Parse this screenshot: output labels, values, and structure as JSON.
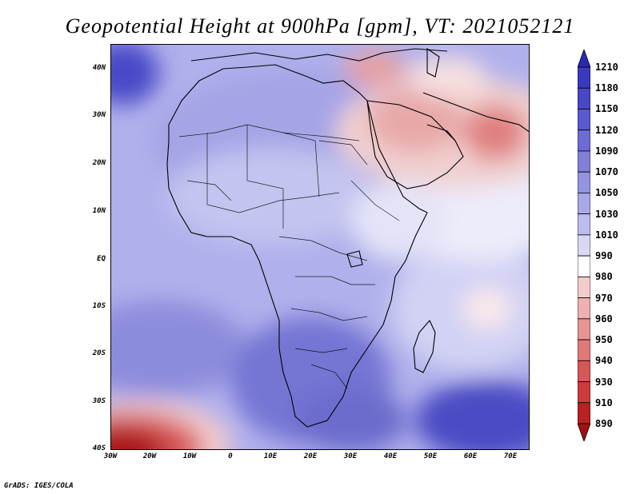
{
  "title": "Geopotential Height at 900hPa [gpm], VT: 2021052121",
  "credit": "GrADS: IGES/COLA",
  "y_axis": [
    "40N",
    "30N",
    "20N",
    "10N",
    "EQ",
    "10S",
    "20S",
    "30S",
    "40S"
  ],
  "x_axis": [
    "30W",
    "20W",
    "10W",
    "0",
    "10E",
    "20E",
    "30E",
    "40E",
    "50E",
    "60E",
    "70E"
  ],
  "colorbar": {
    "labels": [
      "1210",
      "1180",
      "1150",
      "1120",
      "1090",
      "1070",
      "1050",
      "1030",
      "1010",
      "990",
      "980",
      "970",
      "960",
      "950",
      "940",
      "930",
      "910",
      "890"
    ],
    "colors": [
      "#2a2ab0",
      "#3a3ac0",
      "#4848c8",
      "#5a5ad0",
      "#6c6cd6",
      "#8080dc",
      "#9494e2",
      "#a8a8e8",
      "#bcbcee",
      "#d8d8f6",
      "#ffffff",
      "#f4cccc",
      "#eeb0b0",
      "#e89494",
      "#e27878",
      "#d85858",
      "#cc3c3c",
      "#b82222",
      "#a01010"
    ]
  }
}
